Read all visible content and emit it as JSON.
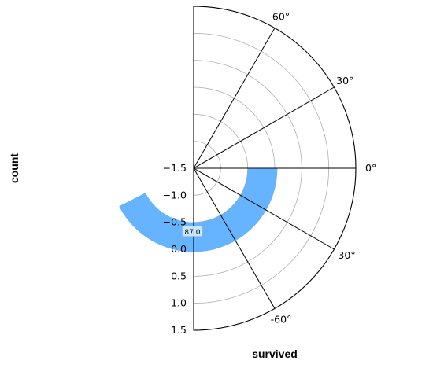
{
  "chart_data": {
    "type": "bar",
    "projection": "polar",
    "angular_range_deg": [
      -90,
      90
    ],
    "angular_ticks": [
      "60°",
      "30°",
      "0°",
      "-30°",
      "-60°"
    ],
    "angular_tick_values_deg": [
      60,
      30,
      0,
      -30,
      -60
    ],
    "radial_ticks": [
      "−1.5",
      "−1.0",
      "−0.5",
      "0.0",
      "0.5",
      "1.0",
      "1.5"
    ],
    "radial_tick_values": [
      -1.5,
      -1.0,
      -0.5,
      0.0,
      0.5,
      1.0,
      1.5
    ],
    "rlim": [
      -1.5,
      1.5
    ],
    "xlabel": "survived",
    "ylabel": "count",
    "grid": true,
    "bars": [
      {
        "category": "",
        "value": 87.0,
        "label": "87.0",
        "color": "#66b3ff",
        "theta_start_deg": 0,
        "theta_end_deg": -153,
        "r_inner": -0.5,
        "r_outer": 0.05
      }
    ]
  },
  "colors": {
    "bar": "#66b3ff",
    "grid": "#b0b0b0",
    "axis": "#000000"
  }
}
